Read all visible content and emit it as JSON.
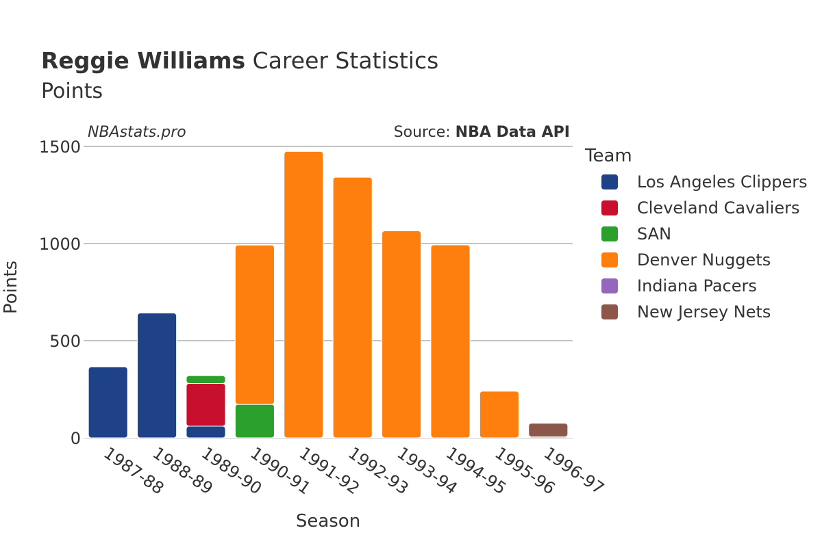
{
  "header": {
    "title_bold": "Reggie Williams",
    "title_rest": " Career Statistics",
    "subtitle": "Points",
    "watermark": "NBAstats.pro",
    "source_prefix": "Source: ",
    "source_name": "NBA Data API"
  },
  "chart_data": {
    "type": "bar",
    "stacked": true,
    "title": "Reggie Williams Career Statistics",
    "subtitle": "Points",
    "xlabel": "Season",
    "ylabel": "Points",
    "ylim": [
      0,
      1500
    ],
    "yticks": [
      0,
      500,
      1000,
      1500
    ],
    "grid": true,
    "legend_title": "Team",
    "legend_position": "right",
    "categories": [
      "1987-88",
      "1988-89",
      "1989-90",
      "1990-91",
      "1991-92",
      "1992-93",
      "1993-94",
      "1994-95",
      "1995-96",
      "1996-97"
    ],
    "series": [
      {
        "name": "Los Angeles Clippers",
        "color": "#1f4287",
        "values": [
          365,
          642,
          60,
          0,
          0,
          0,
          0,
          0,
          0,
          0
        ]
      },
      {
        "name": "Cleveland Cavaliers",
        "color": "#c8102e",
        "values": [
          0,
          0,
          220,
          0,
          0,
          0,
          0,
          0,
          0,
          0
        ]
      },
      {
        "name": "SAN",
        "color": "#2ca02c",
        "values": [
          0,
          0,
          40,
          172,
          0,
          0,
          0,
          0,
          0,
          0
        ]
      },
      {
        "name": "Denver Nuggets",
        "color": "#ff7f0e",
        "values": [
          0,
          0,
          0,
          820,
          1474,
          1341,
          1065,
          993,
          240,
          0
        ]
      },
      {
        "name": "Indiana Pacers",
        "color": "#9467bd",
        "values": [
          0,
          0,
          0,
          0,
          0,
          0,
          0,
          0,
          0,
          5
        ]
      },
      {
        "name": "New Jersey Nets",
        "color": "#8c564b",
        "values": [
          0,
          0,
          0,
          0,
          0,
          0,
          0,
          0,
          0,
          70
        ]
      }
    ]
  }
}
